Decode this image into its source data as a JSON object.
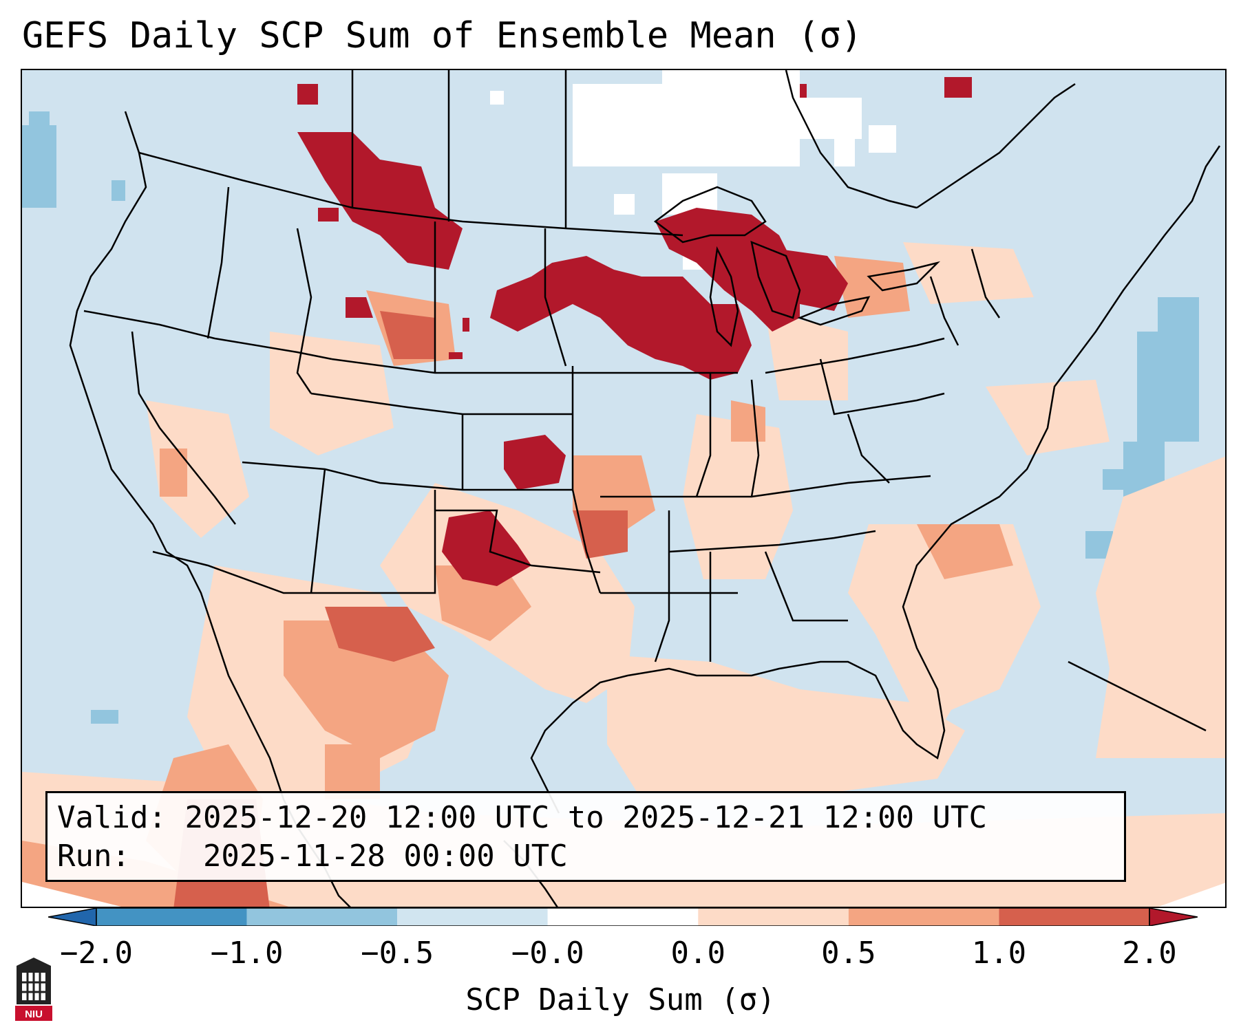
{
  "title": "GEFS Daily SCP Sum of Ensemble Mean (σ)",
  "info": {
    "valid_label": "Valid:",
    "valid_value": "2025-12-20 12:00 UTC to 2025-12-21 12:00 UTC",
    "run_label": "Run:",
    "run_value": "2025-11-28 00:00 UTC"
  },
  "colorbar": {
    "label": "SCP Daily Sum (σ)",
    "ticks": [
      "−2.0",
      "−1.0",
      "−0.5",
      "−0.0",
      "0.0",
      "0.5",
      "1.0",
      "2.0"
    ],
    "colors": [
      "#2166ac",
      "#4393c3",
      "#92c5de",
      "#d1e5f0",
      "#ffffff",
      "#fddbc7",
      "#f4a582",
      "#d6604d",
      "#b2182b"
    ]
  },
  "logo": {
    "text": "NIU"
  }
}
